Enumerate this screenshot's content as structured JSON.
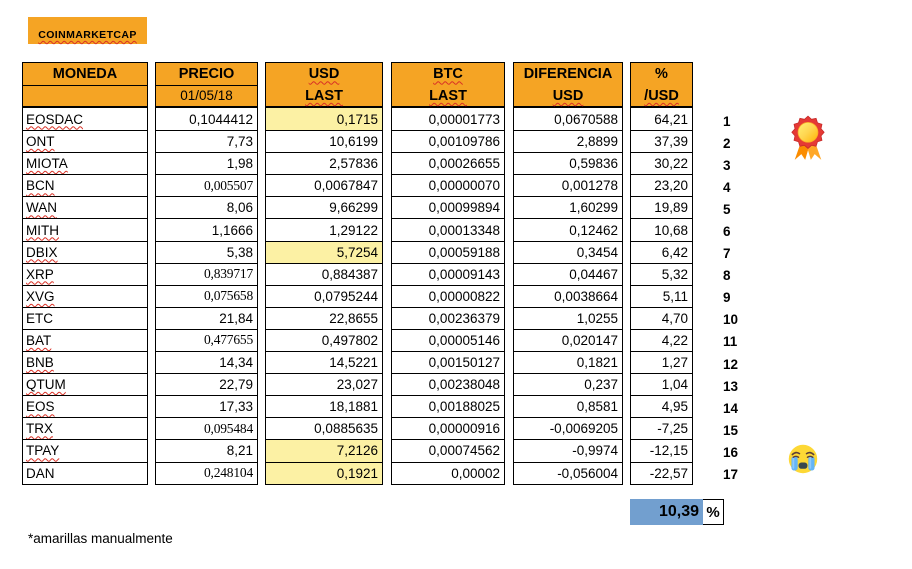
{
  "app": {
    "title": "COINMARKETCAP"
  },
  "colors": {
    "orange": "#F5A424",
    "yellow": "#FCF1A4",
    "blue": "#729FCF",
    "squiggle": "#D93025"
  },
  "table": {
    "columns": [
      {
        "id": "moneda",
        "line1": "MONEDA",
        "line2": ""
      },
      {
        "id": "precio",
        "line1": "PRECIO",
        "line2": "01/05/18"
      },
      {
        "id": "usd",
        "line1": "USD",
        "line2": "LAST"
      },
      {
        "id": "btc",
        "line1": "BTC",
        "line2": "LAST"
      },
      {
        "id": "dif",
        "line1": "DIFERENCIA",
        "line2": "USD"
      },
      {
        "id": "pct",
        "line1": "%",
        "line2": "/USD"
      }
    ],
    "rows": [
      {
        "moneda": "EOSDAC",
        "precio": "0,1044412",
        "usd": "0,1715",
        "btc": "0,00001773",
        "dif": "0,0670588",
        "pct": "64,21",
        "rank": "1",
        "squiggle": true,
        "usd_yellow": true,
        "precio_serif": false
      },
      {
        "moneda": "ONT",
        "precio": "7,73",
        "usd": "10,6199",
        "btc": "0,00109786",
        "dif": "2,8899",
        "pct": "37,39",
        "rank": "2",
        "squiggle": true,
        "usd_yellow": false,
        "precio_serif": false
      },
      {
        "moneda": "MIOTA",
        "precio": "1,98",
        "usd": "2,57836",
        "btc": "0,00026655",
        "dif": "0,59836",
        "pct": "30,22",
        "rank": "3",
        "squiggle": true,
        "usd_yellow": false,
        "precio_serif": false
      },
      {
        "moneda": "BCN",
        "precio": "0,005507",
        "usd": "0,0067847",
        "btc": "0,00000070",
        "dif": "0,001278",
        "pct": "23,20",
        "rank": "4",
        "squiggle": true,
        "usd_yellow": false,
        "precio_serif": true
      },
      {
        "moneda": "WAN",
        "precio": "8,06",
        "usd": "9,66299",
        "btc": "0,00099894",
        "dif": "1,60299",
        "pct": "19,89",
        "rank": "5",
        "squiggle": true,
        "usd_yellow": false,
        "precio_serif": false
      },
      {
        "moneda": "MITH",
        "precio": "1,1666",
        "usd": "1,29122",
        "btc": "0,00013348",
        "dif": "0,12462",
        "pct": "10,68",
        "rank": "6",
        "squiggle": true,
        "usd_yellow": false,
        "precio_serif": false
      },
      {
        "moneda": "DBIX",
        "precio": "5,38",
        "usd": "5,7254",
        "btc": "0,00059188",
        "dif": "0,3454",
        "pct": "6,42",
        "rank": "7",
        "squiggle": true,
        "usd_yellow": true,
        "precio_serif": false
      },
      {
        "moneda": "XRP",
        "precio": "0,839717",
        "usd": "0,884387",
        "btc": "0,00009143",
        "dif": "0,04467",
        "pct": "5,32",
        "rank": "8",
        "squiggle": true,
        "usd_yellow": false,
        "precio_serif": true
      },
      {
        "moneda": "XVG",
        "precio": "0,075658",
        "usd": "0,0795244",
        "btc": "0,00000822",
        "dif": "0,0038664",
        "pct": "5,11",
        "rank": "9",
        "squiggle": true,
        "usd_yellow": false,
        "precio_serif": true
      },
      {
        "moneda": "ETC",
        "precio": "21,84",
        "usd": "22,8655",
        "btc": "0,00236379",
        "dif": "1,0255",
        "pct": "4,70",
        "rank": "10",
        "squiggle": false,
        "usd_yellow": false,
        "precio_serif": false
      },
      {
        "moneda": "BAT",
        "precio": "0,477655",
        "usd": "0,497802",
        "btc": "0,00005146",
        "dif": "0,020147",
        "pct": "4,22",
        "rank": "11",
        "squiggle": true,
        "usd_yellow": false,
        "precio_serif": true
      },
      {
        "moneda": "BNB",
        "precio": "14,34",
        "usd": "14,5221",
        "btc": "0,00150127",
        "dif": "0,1821",
        "pct": "1,27",
        "rank": "12",
        "squiggle": true,
        "usd_yellow": false,
        "precio_serif": false
      },
      {
        "moneda": "QTUM",
        "precio": "22,79",
        "usd": "23,027",
        "btc": "0,00238048",
        "dif": "0,237",
        "pct": "1,04",
        "rank": "13",
        "squiggle": true,
        "usd_yellow": false,
        "precio_serif": false
      },
      {
        "moneda": "EOS",
        "precio": "17,33",
        "usd": "18,1881",
        "btc": "0,00188025",
        "dif": "0,8581",
        "pct": "4,95",
        "rank": "14",
        "squiggle": true,
        "usd_yellow": false,
        "precio_serif": false
      },
      {
        "moneda": "TRX",
        "precio": "0,095484",
        "usd": "0,0885635",
        "btc": "0,00000916",
        "dif": "-0,0069205",
        "pct": "-7,25",
        "rank": "15",
        "squiggle": true,
        "usd_yellow": false,
        "precio_serif": true
      },
      {
        "moneda": "TPAY",
        "precio": "8,21",
        "usd": "7,2126",
        "btc": "0,00074562",
        "dif": "-0,9974",
        "pct": "-12,15",
        "rank": "16",
        "squiggle": true,
        "usd_yellow": true,
        "precio_serif": false
      },
      {
        "moneda": "DAN",
        "precio": "0,248104",
        "usd": "0,1921",
        "btc": "0,00002",
        "dif": "-0,056004",
        "pct": "-22,57",
        "rank": "17",
        "squiggle": false,
        "usd_yellow": true,
        "precio_serif": true
      }
    ]
  },
  "summary": {
    "total_pct": "10,39",
    "unit": "%"
  },
  "footnote": "*amarillas manualmente",
  "icons": {
    "medal": "rosette-medal",
    "crying": "loudly-crying-face"
  }
}
